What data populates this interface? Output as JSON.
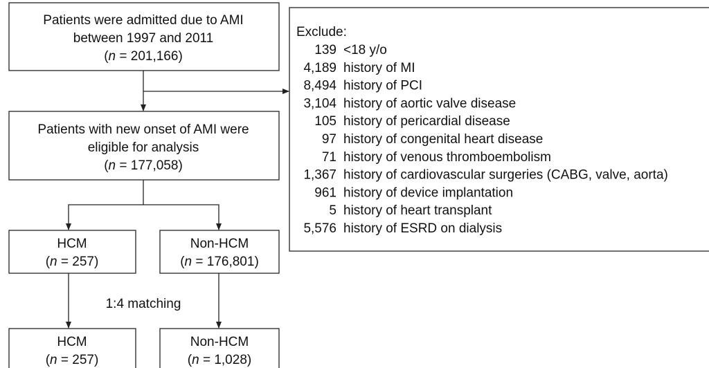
{
  "nodes": [
    {
      "lines": [
        "Patients were admitted due to AMI",
        "between 1997 and 2011",
        "(n = 201,166)"
      ]
    },
    {
      "lines": [
        "Patients with new onset of AMI were",
        "eligible for analysis",
        "(n = 177,058)"
      ]
    },
    {
      "lines": [
        "HCM",
        "(n = 257)"
      ]
    },
    {
      "lines": [
        "Non-HCM",
        "(n = 176,801)"
      ]
    },
    {
      "lines": [
        "HCM",
        "(n = 257)"
      ]
    },
    {
      "lines": [
        "Non-HCM",
        "(n = 1,028)"
      ]
    }
  ],
  "matching_label": "1:4 matching",
  "exclusions": {
    "title": "Exclude:",
    "items": [
      {
        "count": "139",
        "reason": "<18 y/o"
      },
      {
        "count": "4,189",
        "reason": "history of MI"
      },
      {
        "count": "8,494",
        "reason": "history of PCI"
      },
      {
        "count": "3,104",
        "reason": "history of aortic valve disease"
      },
      {
        "count": "105",
        "reason": "history of pericardial disease"
      },
      {
        "count": "97",
        "reason": "history of congenital heart disease"
      },
      {
        "count": "71",
        "reason": "history of venous thromboembolism"
      },
      {
        "count": "1,367",
        "reason": "history of cardiovascular surgeries (CABG, valve, aorta)"
      },
      {
        "count": "961",
        "reason": "history of device implantation"
      },
      {
        "count": "5",
        "reason": "history of heart transplant"
      },
      {
        "count": "5,576",
        "reason": "history of ESRD on dialysis"
      }
    ]
  }
}
